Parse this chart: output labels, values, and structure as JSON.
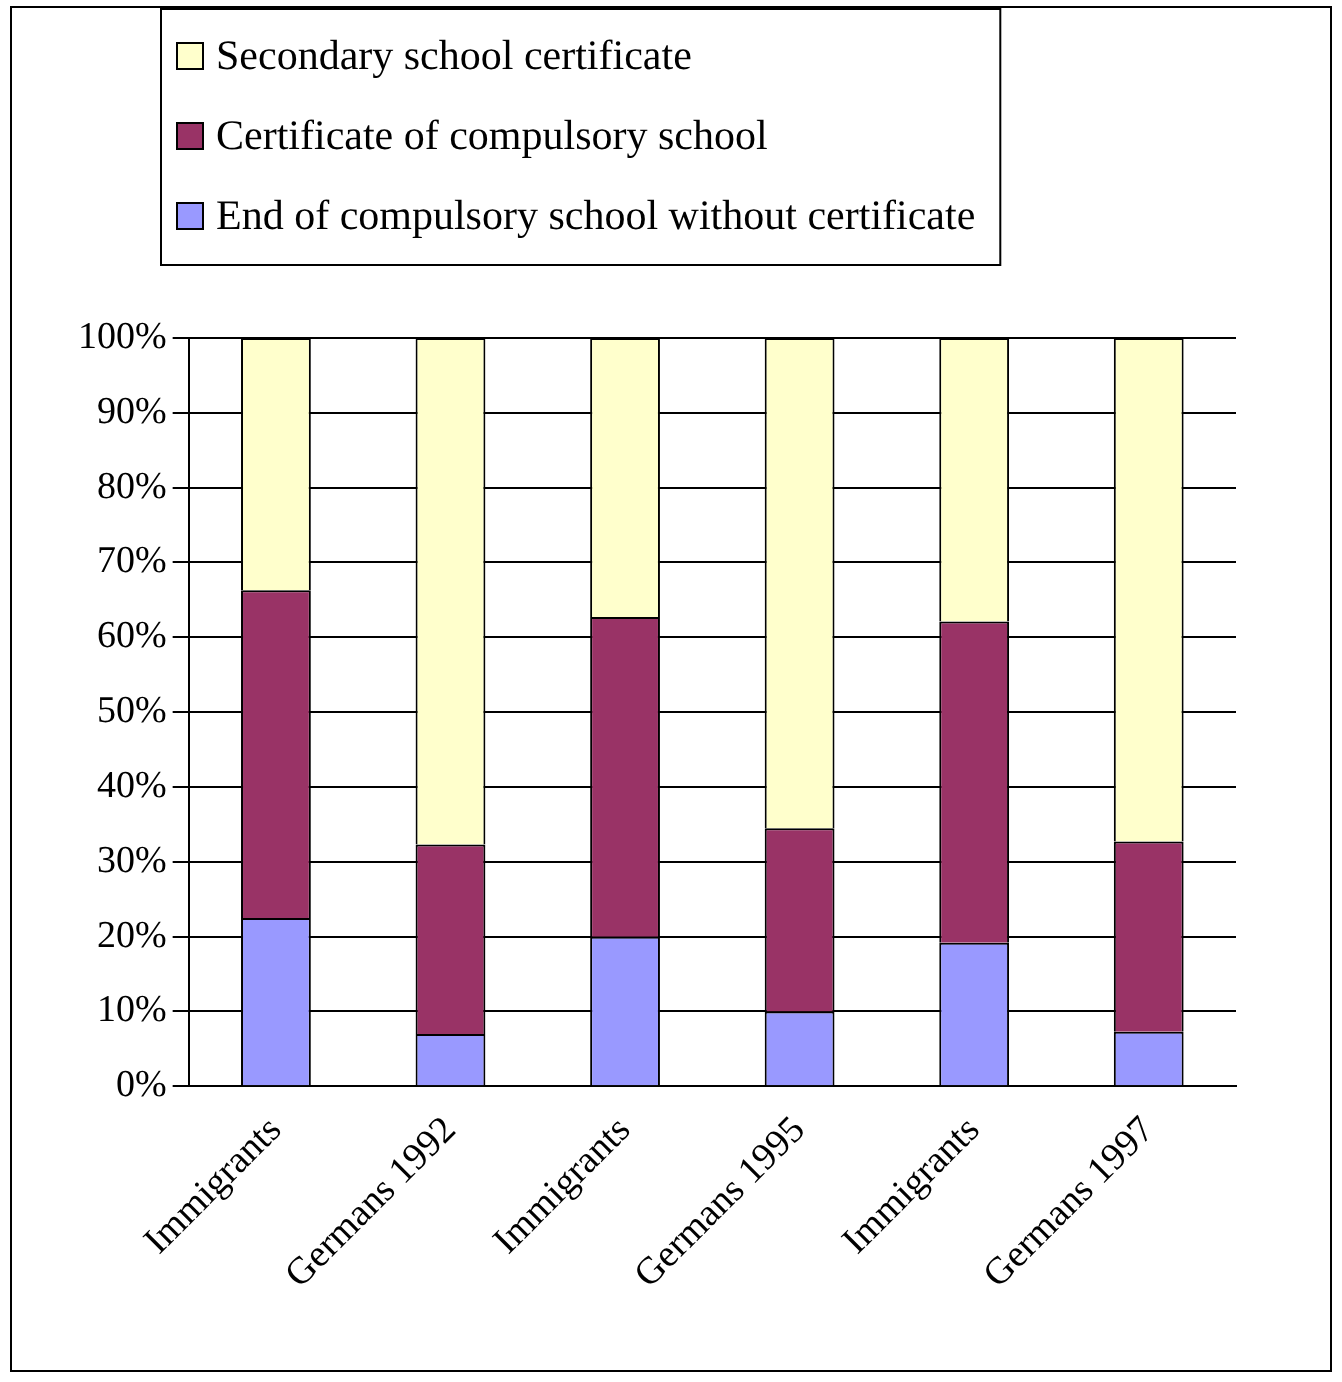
{
  "chart_data": {
    "type": "bar",
    "stacked": true,
    "categories": [
      "Immigrants",
      "Germans 1992",
      "Immigrants",
      "Germans 1995",
      "Immigrants",
      "Germans 1997"
    ],
    "series": [
      {
        "name": "End of compulsory school without certificate",
        "color": "#9999ff",
        "values": [
          22.5,
          7,
          20,
          10,
          19.2,
          7.3
        ]
      },
      {
        "name": "Certificate of compulsory school",
        "color": "#993366",
        "values": [
          43.8,
          25.3,
          42.7,
          24.5,
          42.9,
          25.4
        ]
      },
      {
        "name": "Secondary school certificate",
        "color": "#ffffcc",
        "values": [
          33.7,
          67.7,
          37.3,
          65.5,
          37.9,
          67.3
        ]
      }
    ],
    "ylim": [
      0,
      100
    ],
    "yticks": [
      {
        "value": 0,
        "label": "0%"
      },
      {
        "value": 10,
        "label": "10%"
      },
      {
        "value": 20,
        "label": "20%"
      },
      {
        "value": 30,
        "label": "30%"
      },
      {
        "value": 40,
        "label": "40%"
      },
      {
        "value": 50,
        "label": "50%"
      },
      {
        "value": 60,
        "label": "60%"
      },
      {
        "value": 70,
        "label": "70%"
      },
      {
        "value": 80,
        "label": "80%"
      },
      {
        "value": 90,
        "label": "90%"
      },
      {
        "value": 100,
        "label": "100%"
      }
    ],
    "grid": "y",
    "legend": "top"
  }
}
